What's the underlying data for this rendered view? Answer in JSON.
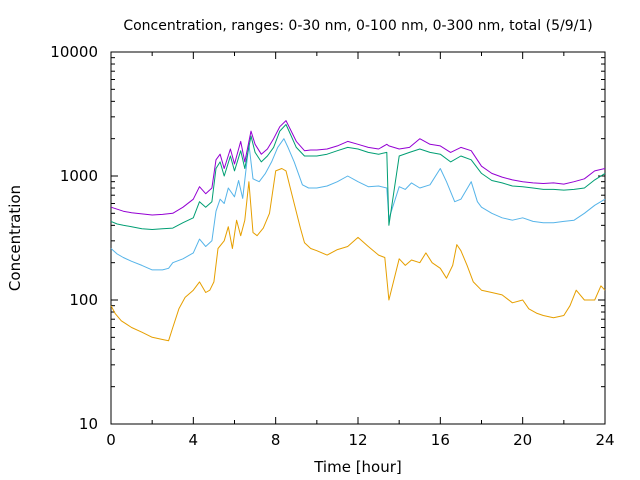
{
  "chart_data": {
    "type": "line",
    "title": "Concentration, ranges: 0-30 nm, 0-100 nm, 0-300 nm, total (5/9/1)",
    "xlabel": "Time [hour]",
    "ylabel": "Concentration",
    "xlim": [
      0,
      24
    ],
    "ylim": [
      10,
      10000
    ],
    "yscale": "log",
    "grid": false,
    "legend": "none",
    "x_ticks": [
      0,
      4,
      8,
      12,
      16,
      20,
      24
    ],
    "x_tick_labels": [
      "0",
      "4",
      "8",
      "12",
      "16",
      "20",
      "24"
    ],
    "y_ticks": [
      10,
      100,
      1000,
      10000
    ],
    "y_tick_labels": [
      "10",
      "100",
      "1000",
      "10000"
    ],
    "gap": [
      13.6,
      14.0
    ],
    "series": [
      {
        "color": "#e69f00",
        "points": [
          [
            0,
            90
          ],
          [
            0.2,
            78
          ],
          [
            0.5,
            68
          ],
          [
            1,
            60
          ],
          [
            1.5,
            55
          ],
          [
            2,
            50
          ],
          [
            2.5,
            48
          ],
          [
            2.8,
            47
          ],
          [
            3,
            60
          ],
          [
            3.3,
            85
          ],
          [
            3.6,
            105
          ],
          [
            4,
            120
          ],
          [
            4.3,
            140
          ],
          [
            4.6,
            115
          ],
          [
            4.8,
            120
          ],
          [
            5,
            140
          ],
          [
            5.2,
            260
          ],
          [
            5.5,
            300
          ],
          [
            5.7,
            390
          ],
          [
            5.9,
            260
          ],
          [
            6.1,
            440
          ],
          [
            6.3,
            330
          ],
          [
            6.5,
            440
          ],
          [
            6.7,
            900
          ],
          [
            6.9,
            350
          ],
          [
            7.1,
            330
          ],
          [
            7.4,
            380
          ],
          [
            7.7,
            500
          ],
          [
            8.0,
            1100
          ],
          [
            8.3,
            1150
          ],
          [
            8.5,
            1100
          ],
          [
            8.8,
            700
          ],
          [
            9.2,
            380
          ],
          [
            9.4,
            290
          ],
          [
            9.7,
            260
          ],
          [
            10,
            250
          ],
          [
            10.5,
            230
          ],
          [
            11,
            255
          ],
          [
            11.5,
            270
          ],
          [
            12,
            320
          ],
          [
            12.5,
            270
          ],
          [
            13,
            230
          ],
          [
            13.3,
            220
          ],
          [
            13.5,
            100
          ],
          [
            14,
            215
          ],
          [
            14.3,
            190
          ],
          [
            14.6,
            210
          ],
          [
            15,
            200
          ],
          [
            15.3,
            240
          ],
          [
            15.6,
            200
          ],
          [
            16,
            180
          ],
          [
            16.3,
            150
          ],
          [
            16.6,
            190
          ],
          [
            16.8,
            280
          ],
          [
            17,
            250
          ],
          [
            17.3,
            190
          ],
          [
            17.6,
            140
          ],
          [
            18,
            120
          ],
          [
            18.5,
            115
          ],
          [
            19,
            110
          ],
          [
            19.5,
            95
          ],
          [
            20,
            100
          ],
          [
            20.3,
            85
          ],
          [
            20.7,
            78
          ],
          [
            21,
            75
          ],
          [
            21.5,
            72
          ],
          [
            22,
            75
          ],
          [
            22.3,
            90
          ],
          [
            22.6,
            120
          ],
          [
            23,
            100
          ],
          [
            23.5,
            100
          ],
          [
            23.8,
            130
          ],
          [
            24,
            120
          ]
        ]
      },
      {
        "color": "#56b4e9",
        "points": [
          [
            0,
            260
          ],
          [
            0.3,
            235
          ],
          [
            0.6,
            220
          ],
          [
            1,
            205
          ],
          [
            1.5,
            190
          ],
          [
            2,
            175
          ],
          [
            2.5,
            175
          ],
          [
            2.8,
            180
          ],
          [
            3,
            200
          ],
          [
            3.5,
            215
          ],
          [
            4,
            240
          ],
          [
            4.3,
            310
          ],
          [
            4.6,
            270
          ],
          [
            4.9,
            300
          ],
          [
            5.1,
            520
          ],
          [
            5.3,
            650
          ],
          [
            5.5,
            600
          ],
          [
            5.7,
            800
          ],
          [
            6.0,
            680
          ],
          [
            6.2,
            920
          ],
          [
            6.4,
            660
          ],
          [
            6.7,
            1800
          ],
          [
            6.9,
            950
          ],
          [
            7.2,
            900
          ],
          [
            7.5,
            1050
          ],
          [
            7.8,
            1300
          ],
          [
            8.1,
            1700
          ],
          [
            8.4,
            2000
          ],
          [
            8.6,
            1700
          ],
          [
            8.9,
            1300
          ],
          [
            9.3,
            850
          ],
          [
            9.6,
            800
          ],
          [
            10,
            800
          ],
          [
            10.5,
            830
          ],
          [
            11,
            900
          ],
          [
            11.5,
            1000
          ],
          [
            12,
            900
          ],
          [
            12.5,
            820
          ],
          [
            13,
            830
          ],
          [
            13.4,
            800
          ],
          [
            13.5,
            450
          ],
          [
            14,
            820
          ],
          [
            14.3,
            780
          ],
          [
            14.6,
            880
          ],
          [
            15,
            800
          ],
          [
            15.5,
            850
          ],
          [
            16,
            1150
          ],
          [
            16.3,
            900
          ],
          [
            16.7,
            620
          ],
          [
            17,
            650
          ],
          [
            17.5,
            900
          ],
          [
            17.8,
            620
          ],
          [
            18,
            560
          ],
          [
            18.5,
            500
          ],
          [
            19,
            460
          ],
          [
            19.5,
            440
          ],
          [
            20,
            460
          ],
          [
            20.5,
            430
          ],
          [
            21,
            420
          ],
          [
            21.5,
            420
          ],
          [
            22,
            430
          ],
          [
            22.5,
            440
          ],
          [
            23,
            500
          ],
          [
            23.5,
            580
          ],
          [
            24,
            650
          ]
        ]
      },
      {
        "color": "#009e73",
        "points": [
          [
            0,
            430
          ],
          [
            0.3,
            410
          ],
          [
            0.6,
            400
          ],
          [
            1,
            390
          ],
          [
            1.5,
            375
          ],
          [
            2,
            370
          ],
          [
            2.5,
            375
          ],
          [
            3,
            380
          ],
          [
            3.5,
            420
          ],
          [
            4,
            460
          ],
          [
            4.3,
            620
          ],
          [
            4.6,
            560
          ],
          [
            4.9,
            620
          ],
          [
            5.1,
            1150
          ],
          [
            5.3,
            1300
          ],
          [
            5.5,
            1000
          ],
          [
            5.8,
            1450
          ],
          [
            6.0,
            1100
          ],
          [
            6.3,
            1600
          ],
          [
            6.5,
            1150
          ],
          [
            6.8,
            2100
          ],
          [
            7.0,
            1550
          ],
          [
            7.3,
            1300
          ],
          [
            7.6,
            1450
          ],
          [
            7.9,
            1700
          ],
          [
            8.2,
            2300
          ],
          [
            8.5,
            2600
          ],
          [
            8.7,
            2200
          ],
          [
            9.0,
            1700
          ],
          [
            9.4,
            1450
          ],
          [
            9.7,
            1450
          ],
          [
            10,
            1450
          ],
          [
            10.5,
            1500
          ],
          [
            11,
            1600
          ],
          [
            11.5,
            1700
          ],
          [
            12,
            1650
          ],
          [
            12.5,
            1550
          ],
          [
            13,
            1500
          ],
          [
            13.4,
            1550
          ],
          [
            13.5,
            400
          ],
          [
            14,
            1450
          ],
          [
            14.5,
            1550
          ],
          [
            15,
            1650
          ],
          [
            15.5,
            1550
          ],
          [
            16,
            1500
          ],
          [
            16.5,
            1300
          ],
          [
            17,
            1450
          ],
          [
            17.5,
            1350
          ],
          [
            18,
            1050
          ],
          [
            18.5,
            920
          ],
          [
            19,
            880
          ],
          [
            19.5,
            830
          ],
          [
            20,
            820
          ],
          [
            20.5,
            800
          ],
          [
            21,
            780
          ],
          [
            21.5,
            780
          ],
          [
            22,
            770
          ],
          [
            22.5,
            780
          ],
          [
            23,
            800
          ],
          [
            23.5,
            930
          ],
          [
            24,
            1050
          ]
        ]
      },
      {
        "color": "#9400d3",
        "points": [
          [
            0,
            560
          ],
          [
            0.3,
            540
          ],
          [
            0.6,
            520
          ],
          [
            1,
            505
          ],
          [
            1.5,
            495
          ],
          [
            2,
            485
          ],
          [
            2.5,
            490
          ],
          [
            3,
            500
          ],
          [
            3.5,
            560
          ],
          [
            4,
            650
          ],
          [
            4.3,
            820
          ],
          [
            4.6,
            720
          ],
          [
            4.9,
            800
          ],
          [
            5.1,
            1350
          ],
          [
            5.3,
            1500
          ],
          [
            5.5,
            1150
          ],
          [
            5.8,
            1650
          ],
          [
            6.0,
            1250
          ],
          [
            6.3,
            1900
          ],
          [
            6.5,
            1300
          ],
          [
            6.8,
            2300
          ],
          [
            7.0,
            1800
          ],
          [
            7.3,
            1500
          ],
          [
            7.6,
            1650
          ],
          [
            7.9,
            2000
          ],
          [
            8.2,
            2500
          ],
          [
            8.5,
            2800
          ],
          [
            8.7,
            2400
          ],
          [
            9.0,
            1900
          ],
          [
            9.4,
            1600
          ],
          [
            9.7,
            1620
          ],
          [
            10,
            1620
          ],
          [
            10.5,
            1650
          ],
          [
            11,
            1750
          ],
          [
            11.5,
            1900
          ],
          [
            12,
            1800
          ],
          [
            12.5,
            1700
          ],
          [
            13,
            1650
          ],
          [
            13.4,
            1800
          ],
          [
            13.5,
            1750
          ],
          [
            14,
            1650
          ],
          [
            14.5,
            1700
          ],
          [
            15,
            2000
          ],
          [
            15.5,
            1800
          ],
          [
            16,
            1750
          ],
          [
            16.5,
            1550
          ],
          [
            17,
            1700
          ],
          [
            17.5,
            1600
          ],
          [
            18,
            1200
          ],
          [
            18.5,
            1050
          ],
          [
            19,
            980
          ],
          [
            19.5,
            930
          ],
          [
            20,
            900
          ],
          [
            20.5,
            880
          ],
          [
            21,
            870
          ],
          [
            21.5,
            880
          ],
          [
            22,
            860
          ],
          [
            22.5,
            900
          ],
          [
            23,
            950
          ],
          [
            23.5,
            1100
          ],
          [
            24,
            1150
          ]
        ]
      }
    ]
  }
}
